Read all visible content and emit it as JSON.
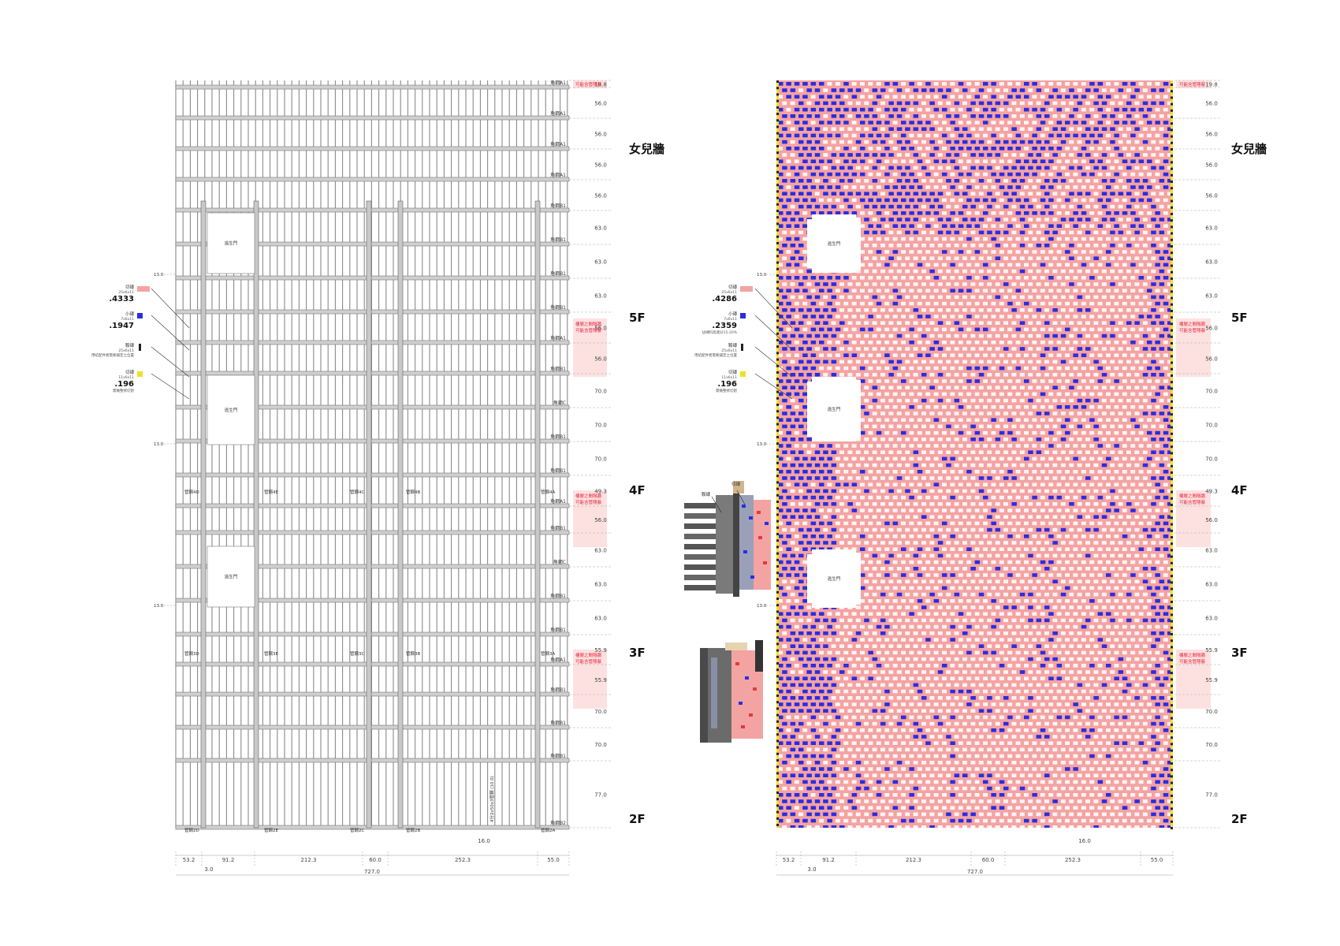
{
  "colors": {
    "pink": "#f4a3a3",
    "pink_light": "#fde1e1",
    "blue": "#2a2ee0",
    "yellow": "#f0e02a",
    "grid_line": "#888888",
    "note_red": "#e8253a"
  },
  "floor_labels": [
    "女兒牆",
    "5F",
    "4F",
    "3F",
    "2F"
  ],
  "level_dims_left": [
    "19.8",
    "56.0",
    "56.0",
    "56.0",
    "56.0",
    "63.0",
    "63.0",
    "63.0",
    "56.0",
    "56.0",
    "70.0",
    "70.0",
    "70.0",
    "49.3",
    "56.0",
    "63.0",
    "63.0",
    "63.0",
    "55.9",
    "55.9",
    "70.0",
    "70.0",
    "77.0"
  ],
  "level_dims_right": [
    "19.8",
    "56.0",
    "56.0",
    "56.0",
    "56.0",
    "63.0",
    "63.0",
    "63.0",
    "56.0",
    "56.0",
    "70.0",
    "70.0",
    "70.0",
    "49.3",
    "56.0",
    "63.0",
    "63.0",
    "63.0",
    "55.9",
    "55.9",
    "70.0",
    "70.0",
    "77.0"
  ],
  "beam_labels": [
    "角鋼A1",
    "角鋼A1",
    "角鋼A1",
    "角鋼A1",
    "角鋼B1",
    "角鋼B1",
    "角鋼B1",
    "角鋼B1",
    "角鋼A1",
    "角鋼B1",
    "角鋼C",
    "角鋼B1",
    "角鋼B1",
    "角鋼A1",
    "角鋼B1",
    "角鋼C",
    "角鋼B1",
    "角鋼B1",
    "角鋼A1",
    "角鋼B1",
    "角鋼B1",
    "角鋼B1",
    "角鋼B2"
  ],
  "notes": {
    "top": "可能含管隱蔽",
    "band_line1": "樓層之間隔牆",
    "band_line2": "可能含管隱蔽"
  },
  "door_label": "逃生門",
  "side_dim": "13.0",
  "column_labels": {
    "row4": [
      "管鋼4D",
      "管鋼4E",
      "管鋼4C",
      "管鋼4B",
      "管鋼4A"
    ],
    "row3": [
      "管鋼3D",
      "管鋼3E",
      "管鋼3C",
      "管鋼3B",
      "管鋼3A"
    ],
    "row2": [
      "管鋼2D",
      "管鋼2E",
      "管鋼2C",
      "管鋼2B",
      "管鋼2A"
    ]
  },
  "vertical_note": "4分2x50x3管鋼 (10.0)",
  "small_dim": "16.0",
  "bottom_dims": [
    "53.2",
    "91.2",
    "212.3",
    "60.0",
    "252.3",
    "55.0"
  ],
  "bottom_dim_small": "3.0",
  "total_dim": "727.0",
  "legend_left": [
    {
      "title": "切磚",
      "sub": "25x6x11",
      "value": ".4333",
      "color": "#f4a3a3"
    },
    {
      "title": "小磚",
      "sub": "7x6x11",
      "value": ".1947",
      "color": "#2a2ee0"
    },
    {
      "title": "鞍磚",
      "sub": "25x6x11",
      "value": "",
      "extra": "用結配件者需要鋪定之位置",
      "color": "#222222"
    },
    {
      "title": "切磚",
      "sub": "11x6x11",
      "value": ".196",
      "extra": "需做整修切割",
      "color": "#f0e02a"
    }
  ],
  "legend_right": [
    {
      "title": "切磚",
      "sub": "25x6x11",
      "value": ".4286",
      "color": "#f4a3a3"
    },
    {
      "title": "小磚",
      "sub": "7x6x11",
      "value": ".2359",
      "extra": "佔磚料高達分15-20%",
      "color": "#2a2ee0"
    },
    {
      "title": "鞍磚",
      "sub": "25x6x11",
      "value": "",
      "extra": "用結配件者需要鋪定之位置",
      "color": "#222222"
    },
    {
      "title": "切磚",
      "sub": "11x6x11",
      "value": ".196",
      "extra": "需做整修切割",
      "color": "#f0e02a"
    }
  ],
  "axon_labels": [
    "鞍磚",
    "切磚"
  ]
}
